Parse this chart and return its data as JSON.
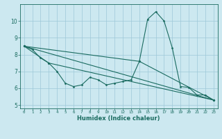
{
  "xlabel": "Humidex (Indice chaleur)",
  "bg_color": "#cce8f0",
  "grid_color": "#9ec8d8",
  "line_color": "#1a6b60",
  "xlim": [
    -0.5,
    23.5
  ],
  "ylim": [
    4.8,
    11.0
  ],
  "yticks": [
    5,
    6,
    7,
    8,
    9,
    10
  ],
  "xticks": [
    0,
    1,
    2,
    3,
    4,
    5,
    6,
    7,
    8,
    9,
    10,
    11,
    12,
    13,
    14,
    15,
    16,
    17,
    18,
    19,
    20,
    21,
    22,
    23
  ],
  "lines": [
    {
      "x": [
        0,
        1,
        2,
        3,
        4,
        5,
        6,
        7,
        8,
        9,
        10,
        11,
        12,
        13,
        14,
        15,
        16,
        17,
        18,
        19,
        20,
        21,
        22,
        23
      ],
      "y": [
        8.5,
        8.3,
        7.8,
        7.5,
        7.0,
        6.3,
        6.1,
        6.2,
        6.65,
        6.5,
        6.2,
        6.3,
        6.4,
        6.5,
        7.6,
        10.1,
        10.55,
        10.0,
        8.4,
        6.1,
        6.05,
        5.6,
        5.6,
        5.3
      ]
    },
    {
      "x": [
        0,
        23
      ],
      "y": [
        8.5,
        5.3
      ]
    },
    {
      "x": [
        0,
        14,
        23
      ],
      "y": [
        8.5,
        7.6,
        5.3
      ]
    },
    {
      "x": [
        0,
        3,
        23
      ],
      "y": [
        8.5,
        7.5,
        5.3
      ]
    }
  ]
}
